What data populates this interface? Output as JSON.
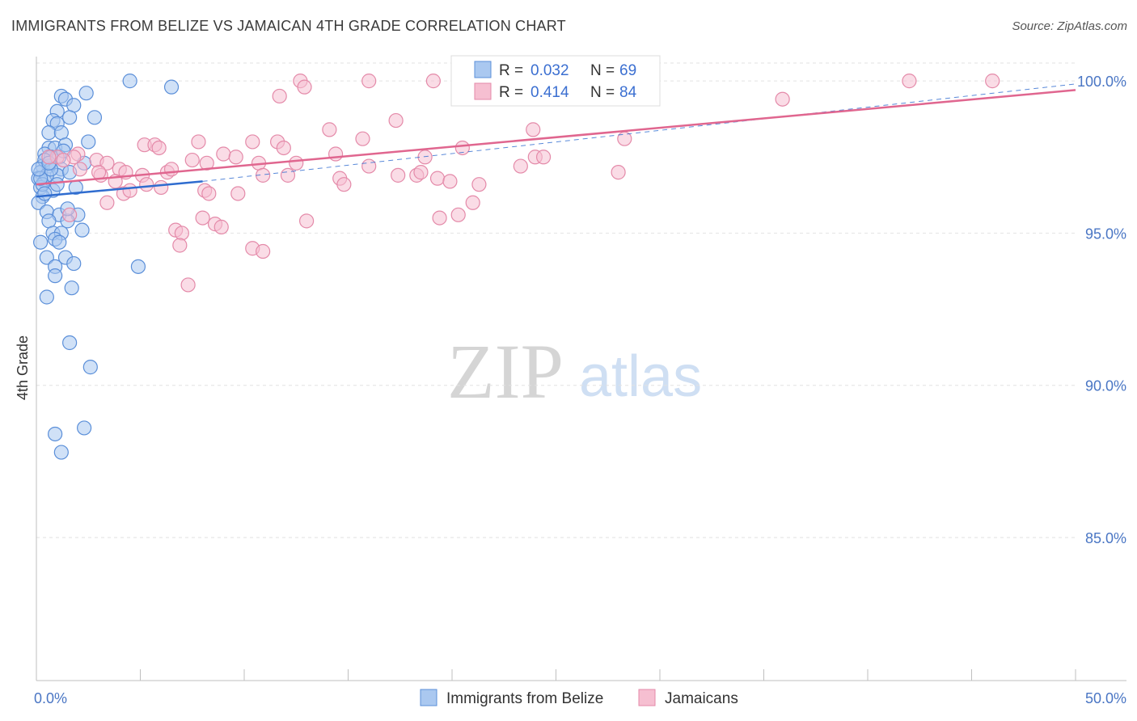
{
  "header": {
    "title": "IMMIGRANTS FROM BELIZE VS JAMAICAN 4TH GRADE CORRELATION CHART",
    "source": "Source: ZipAtlas.com"
  },
  "watermark": {
    "zip": "ZIP",
    "atlas": "atlas"
  },
  "colors": {
    "belize_fill": "#aac8f0",
    "belize_stroke": "#5b8fd9",
    "belize_line": "#2f6ccf",
    "jamaican_fill": "#f6bfd1",
    "jamaican_stroke": "#e48aa9",
    "jamaican_line": "#e0668f",
    "tick_text": "#4a76c4",
    "grid": "#e2e2e2"
  },
  "legend_top": {
    "rows": [
      {
        "r_label": "R = ",
        "r_value": "0.032",
        "n_label": "N = ",
        "n_value": "69"
      },
      {
        "r_label": "R = ",
        "r_value": "0.414",
        "n_label": "N = ",
        "n_value": "84"
      }
    ]
  },
  "chart_data": {
    "type": "scatter",
    "title": "IMMIGRANTS FROM BELIZE VS JAMAICAN 4TH GRADE CORRELATION CHART",
    "xlabel": "",
    "ylabel": "4th Grade",
    "xlim": [
      0,
      50
    ],
    "ylim": [
      80.3,
      100.8
    ],
    "x_tick_labels": [
      "0.0%",
      "50.0%"
    ],
    "y_ticks": [
      85,
      90,
      95,
      100
    ],
    "y_tick_labels": [
      "85.0%",
      "90.0%",
      "95.0%",
      "100.0%"
    ],
    "grid": true,
    "legend_position": "bottom",
    "series": [
      {
        "name": "Immigrants from Belize",
        "r": 0.032,
        "n": 69,
        "trend": {
          "x": [
            0,
            8
          ],
          "y": [
            96.2,
            96.7
          ]
        },
        "trend_extended": {
          "x": [
            8,
            50
          ],
          "y": [
            96.7,
            99.9
          ]
        },
        "points": [
          [
            4.5,
            100.0
          ],
          [
            6.5,
            99.8
          ],
          [
            1.2,
            99.5
          ],
          [
            1.4,
            99.4
          ],
          [
            2.4,
            99.6
          ],
          [
            1.8,
            99.2
          ],
          [
            1.0,
            99.0
          ],
          [
            1.6,
            98.8
          ],
          [
            2.8,
            98.8
          ],
          [
            0.8,
            98.7
          ],
          [
            1.0,
            98.6
          ],
          [
            0.6,
            98.3
          ],
          [
            1.2,
            98.3
          ],
          [
            2.5,
            98.0
          ],
          [
            0.6,
            97.8
          ],
          [
            0.9,
            97.8
          ],
          [
            1.4,
            97.9
          ],
          [
            0.4,
            97.6
          ],
          [
            0.7,
            97.5
          ],
          [
            1.1,
            97.5
          ],
          [
            0.3,
            97.2
          ],
          [
            0.6,
            97.2
          ],
          [
            0.2,
            97.0
          ],
          [
            1.2,
            97.1
          ],
          [
            0.1,
            96.8
          ],
          [
            0.4,
            96.7
          ],
          [
            1.0,
            96.9
          ],
          [
            0.2,
            96.5
          ],
          [
            0.8,
            96.4
          ],
          [
            0.3,
            96.2
          ],
          [
            1.9,
            96.5
          ],
          [
            0.1,
            96.0
          ],
          [
            0.5,
            95.7
          ],
          [
            1.1,
            95.6
          ],
          [
            2.0,
            95.6
          ],
          [
            0.6,
            95.4
          ],
          [
            1.5,
            95.4
          ],
          [
            0.8,
            95.0
          ],
          [
            1.2,
            95.0
          ],
          [
            2.2,
            95.1
          ],
          [
            0.2,
            94.7
          ],
          [
            0.9,
            94.8
          ],
          [
            1.1,
            94.7
          ],
          [
            0.5,
            94.2
          ],
          [
            1.4,
            94.2
          ],
          [
            0.9,
            93.9
          ],
          [
            1.8,
            94.0
          ],
          [
            4.9,
            93.9
          ],
          [
            0.9,
            93.6
          ],
          [
            1.7,
            93.2
          ],
          [
            0.5,
            92.9
          ],
          [
            1.6,
            91.4
          ],
          [
            2.6,
            90.6
          ],
          [
            0.9,
            88.4
          ],
          [
            2.3,
            88.6
          ],
          [
            1.2,
            87.8
          ],
          [
            0.4,
            97.4
          ],
          [
            0.5,
            96.9
          ],
          [
            0.7,
            97.1
          ],
          [
            1.3,
            97.7
          ],
          [
            0.3,
            96.6
          ],
          [
            0.2,
            96.8
          ],
          [
            0.1,
            97.1
          ],
          [
            1.6,
            97.0
          ],
          [
            0.6,
            97.3
          ],
          [
            0.4,
            96.3
          ],
          [
            1.5,
            95.8
          ],
          [
            2.3,
            97.3
          ],
          [
            1.0,
            96.6
          ]
        ]
      },
      {
        "name": "Jamaicans",
        "r": 0.414,
        "n": 84,
        "trend": {
          "x": [
            0,
            50
          ],
          "y": [
            96.6,
            99.7
          ]
        },
        "points": [
          [
            12.7,
            100.0
          ],
          [
            12.9,
            99.8
          ],
          [
            16.0,
            100.0
          ],
          [
            19.1,
            100.0
          ],
          [
            26.3,
            100.0
          ],
          [
            26.7,
            100.0
          ],
          [
            42.0,
            100.0
          ],
          [
            46.0,
            100.0
          ],
          [
            11.7,
            99.5
          ],
          [
            35.9,
            99.4
          ],
          [
            17.3,
            98.7
          ],
          [
            14.1,
            98.4
          ],
          [
            23.9,
            98.4
          ],
          [
            28.3,
            98.1
          ],
          [
            7.8,
            98.0
          ],
          [
            10.4,
            98.0
          ],
          [
            11.6,
            98.0
          ],
          [
            5.2,
            97.9
          ],
          [
            5.7,
            97.9
          ],
          [
            5.9,
            97.8
          ],
          [
            11.9,
            97.8
          ],
          [
            20.5,
            97.8
          ],
          [
            9.0,
            97.6
          ],
          [
            9.6,
            97.5
          ],
          [
            14.4,
            97.6
          ],
          [
            18.7,
            97.5
          ],
          [
            24.0,
            97.5
          ],
          [
            2.0,
            97.6
          ],
          [
            1.0,
            97.5
          ],
          [
            0.6,
            97.5
          ],
          [
            1.8,
            97.5
          ],
          [
            7.5,
            97.4
          ],
          [
            8.2,
            97.3
          ],
          [
            10.7,
            97.3
          ],
          [
            12.5,
            97.3
          ],
          [
            1.3,
            97.4
          ],
          [
            2.9,
            97.4
          ],
          [
            3.4,
            97.3
          ],
          [
            4.0,
            97.1
          ],
          [
            16.0,
            97.2
          ],
          [
            23.3,
            97.2
          ],
          [
            2.1,
            97.1
          ],
          [
            4.3,
            97.0
          ],
          [
            6.3,
            97.0
          ],
          [
            6.5,
            97.1
          ],
          [
            17.4,
            96.9
          ],
          [
            28.0,
            97.0
          ],
          [
            3.1,
            96.9
          ],
          [
            5.1,
            96.9
          ],
          [
            10.9,
            96.9
          ],
          [
            12.1,
            96.9
          ],
          [
            14.6,
            96.8
          ],
          [
            18.3,
            96.9
          ],
          [
            18.5,
            97.0
          ],
          [
            19.3,
            96.8
          ],
          [
            3.8,
            96.7
          ],
          [
            5.3,
            96.6
          ],
          [
            6.0,
            96.5
          ],
          [
            8.1,
            96.4
          ],
          [
            14.8,
            96.6
          ],
          [
            19.9,
            96.7
          ],
          [
            21.3,
            96.6
          ],
          [
            4.2,
            96.3
          ],
          [
            4.5,
            96.4
          ],
          [
            8.3,
            96.3
          ],
          [
            9.7,
            96.3
          ],
          [
            3.4,
            96.0
          ],
          [
            21.0,
            96.0
          ],
          [
            1.6,
            95.6
          ],
          [
            19.4,
            95.5
          ],
          [
            20.3,
            95.6
          ],
          [
            8.0,
            95.5
          ],
          [
            8.6,
            95.3
          ],
          [
            6.7,
            95.1
          ],
          [
            7.0,
            95.0
          ],
          [
            8.9,
            95.2
          ],
          [
            6.9,
            94.6
          ],
          [
            10.4,
            94.5
          ],
          [
            10.9,
            94.4
          ],
          [
            7.3,
            93.3
          ],
          [
            13.0,
            95.4
          ],
          [
            24.4,
            97.5
          ],
          [
            15.7,
            98.1
          ],
          [
            3.0,
            97.0
          ]
        ]
      }
    ]
  },
  "legend_bottom": {
    "items": [
      {
        "label": "Immigrants from Belize"
      },
      {
        "label": "Jamaicans"
      }
    ]
  }
}
